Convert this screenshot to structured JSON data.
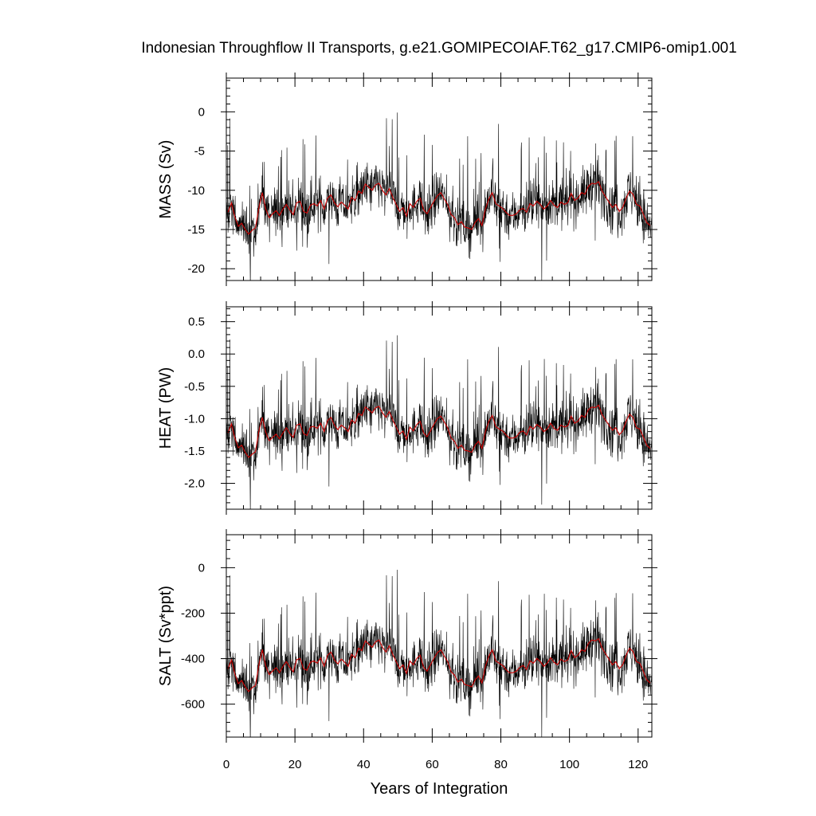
{
  "chart_data": {
    "type": "line",
    "title": "Indonesian Throughflow II Transports, g.e21.GOMIPECOIAF.T62_g17.CMIP6-omip1.001",
    "xlabel": "Years of Integration",
    "xlim": [
      0,
      124
    ],
    "x_ticks": [
      "0",
      "20",
      "40",
      "60",
      "80",
      "100",
      "120"
    ],
    "x_tick_values": [
      0,
      20,
      40,
      60,
      80,
      100,
      120
    ],
    "series_colors": {
      "monthly": "#000000",
      "annual_mean": "#cc0000"
    },
    "panels": [
      {
        "ylabel": "MASS (Sv)",
        "ylim": [
          -21.5,
          4.3
        ],
        "y_tick_values": [
          0,
          -5,
          -10,
          -15,
          -20
        ],
        "y_ticks": [
          "0",
          "-5",
          "-10",
          "-15",
          "-20"
        ],
        "annual_mean": [
          -12.8,
          -11.6,
          -13.4,
          -14.6,
          -14.2,
          -15.0,
          -15.6,
          -15.1,
          -14.8,
          -12.2,
          -10.3,
          -12.4,
          -13.5,
          -13.0,
          -12.6,
          -13.2,
          -12.4,
          -11.8,
          -12.5,
          -13.1,
          -11.6,
          -11.4,
          -12.7,
          -12.9,
          -11.9,
          -11.7,
          -12.0,
          -11.3,
          -12.4,
          -11.0,
          -10.6,
          -11.6,
          -12.1,
          -11.5,
          -11.9,
          -12.4,
          -10.9,
          -11.3,
          -10.1,
          -10.4,
          -9.2,
          -9.6,
          -10.0,
          -9.3,
          -9.1,
          -10.0,
          -10.6,
          -9.8,
          -10.9,
          -11.8,
          -12.7,
          -12.2,
          -13.3,
          -11.7,
          -12.2,
          -11.4,
          -11.0,
          -12.5,
          -13.0,
          -12.2,
          -11.4,
          -10.7,
          -10.3,
          -11.1,
          -11.8,
          -13.1,
          -13.5,
          -14.4,
          -14.0,
          -14.7,
          -14.8,
          -15.0,
          -14.1,
          -13.6,
          -14.5,
          -12.4,
          -11.1,
          -10.3,
          -11.7,
          -12.0,
          -12.3,
          -12.8,
          -13.2,
          -13.2,
          -13.0,
          -12.5,
          -12.3,
          -12.8,
          -11.7,
          -12.0,
          -11.4,
          -11.8,
          -12.4,
          -12.0,
          -11.3,
          -11.9,
          -12.2,
          -11.5,
          -11.8,
          -11.6,
          -10.4,
          -11.3,
          -11.0,
          -10.3,
          -10.5,
          -9.5,
          -9.1,
          -9.2,
          -8.9,
          -10.1,
          -10.8,
          -11.5,
          -12.2,
          -11.8,
          -12.7,
          -12.2,
          -11.0,
          -10.1,
          -10.5,
          -11.8,
          -12.0,
          -13.0,
          -14.1,
          -14.5
        ]
      },
      {
        "ylabel": "HEAT (PW)",
        "ylim": [
          -2.4,
          0.73
        ],
        "y_tick_values": [
          0.5,
          0.0,
          -0.5,
          -1.0,
          -1.5,
          -2.0
        ],
        "y_ticks": [
          "0.5",
          "0.0",
          "-0.5",
          "-1.0",
          "-1.5",
          "-2.0"
        ],
        "annual_mean": [
          -1.22,
          -1.08,
          -1.3,
          -1.45,
          -1.41,
          -1.52,
          -1.6,
          -1.55,
          -1.51,
          -1.19,
          -0.98,
          -1.21,
          -1.34,
          -1.29,
          -1.24,
          -1.31,
          -1.22,
          -1.14,
          -1.23,
          -1.29,
          -1.1,
          -1.08,
          -1.23,
          -1.26,
          -1.13,
          -1.12,
          -1.15,
          -1.07,
          -1.2,
          -1.03,
          -0.98,
          -1.1,
          -1.17,
          -1.1,
          -1.14,
          -1.2,
          -1.02,
          -1.07,
          -0.92,
          -0.95,
          -0.82,
          -0.86,
          -0.91,
          -0.83,
          -0.81,
          -0.91,
          -0.98,
          -0.89,
          -1.02,
          -1.13,
          -1.24,
          -1.19,
          -1.32,
          -1.13,
          -1.19,
          -1.09,
          -1.04,
          -1.22,
          -1.28,
          -1.19,
          -1.09,
          -1.0,
          -0.96,
          -1.05,
          -1.14,
          -1.3,
          -1.35,
          -1.46,
          -1.41,
          -1.49,
          -1.5,
          -1.52,
          -1.41,
          -1.35,
          -1.46,
          -1.2,
          -1.04,
          -0.95,
          -1.12,
          -1.16,
          -1.19,
          -1.25,
          -1.3,
          -1.3,
          -1.28,
          -1.21,
          -1.19,
          -1.25,
          -1.12,
          -1.16,
          -1.09,
          -1.13,
          -1.2,
          -1.16,
          -1.07,
          -1.15,
          -1.18,
          -1.1,
          -1.13,
          -1.11,
          -0.96,
          -1.07,
          -1.04,
          -0.95,
          -0.98,
          -0.86,
          -0.82,
          -0.83,
          -0.79,
          -0.94,
          -1.02,
          -1.1,
          -1.18,
          -1.14,
          -1.25,
          -1.19,
          -1.04,
          -0.93,
          -0.98,
          -1.14,
          -1.16,
          -1.28,
          -1.41,
          -1.46
        ]
      },
      {
        "ylabel": "SALT (Sv*ppt)",
        "ylim": [
          -745,
          145
        ],
        "y_tick_values": [
          0,
          -200,
          -400,
          -600
        ],
        "y_ticks": [
          "0",
          "-200",
          "-400",
          "-600"
        ],
        "annual_mean": [
          -445,
          -405,
          -468,
          -510,
          -496,
          -524,
          -545,
          -528,
          -518,
          -426,
          -360,
          -432,
          -470,
          -454,
          -440,
          -462,
          -434,
          -413,
          -438,
          -458,
          -405,
          -399,
          -444,
          -451,
          -416,
          -410,
          -420,
          -396,
          -434,
          -385,
          -371,
          -406,
          -423,
          -402,
          -416,
          -434,
          -381,
          -396,
          -354,
          -365,
          -322,
          -336,
          -350,
          -326,
          -318,
          -350,
          -371,
          -343,
          -381,
          -413,
          -444,
          -427,
          -465,
          -410,
          -427,
          -399,
          -385,
          -438,
          -455,
          -427,
          -399,
          -374,
          -361,
          -389,
          -413,
          -458,
          -472,
          -503,
          -490,
          -514,
          -518,
          -524,
          -493,
          -476,
          -507,
          -434,
          -389,
          -361,
          -410,
          -420,
          -430,
          -448,
          -462,
          -462,
          -455,
          -438,
          -430,
          -448,
          -410,
          -420,
          -399,
          -413,
          -434,
          -420,
          -396,
          -416,
          -427,
          -402,
          -413,
          -406,
          -364,
          -396,
          -385,
          -361,
          -368,
          -333,
          -318,
          -322,
          -312,
          -354,
          -378,
          -402,
          -427,
          -413,
          -444,
          -427,
          -385,
          -354,
          -368,
          -413,
          -420,
          -455,
          -493,
          -507
        ]
      }
    ]
  }
}
